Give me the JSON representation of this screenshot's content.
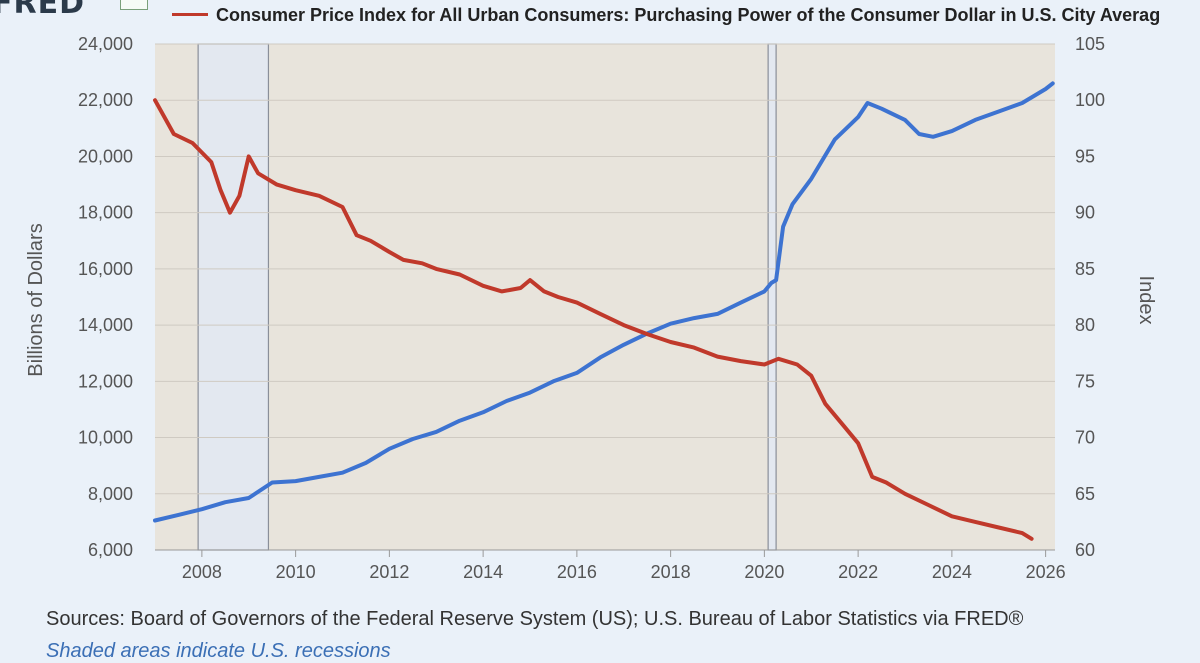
{
  "header": {
    "logo": "FRED",
    "legend": [
      {
        "label": "Consumer Price Index for All Urban Consumers: Purchasing Power of the Consumer Dollar in U.S. City Averag",
        "color": "#c0392b"
      }
    ]
  },
  "footer": {
    "sources": "Sources: Board of Governors of the Federal Reserve System (US); U.S. Bureau of Labor Statistics via FRED®",
    "note": "Shaded areas indicate U.S. recessions"
  },
  "chart_data": {
    "type": "line",
    "xlim": [
      2007.0,
      2026.2
    ],
    "x_ticks": [
      2008,
      2010,
      2012,
      2014,
      2016,
      2018,
      2020,
      2022,
      2024,
      2026
    ],
    "ylabel": "Billions of Dollars",
    "ylim": [
      6000,
      24000
    ],
    "y_ticks": [
      6000,
      8000,
      10000,
      12000,
      14000,
      16000,
      18000,
      20000,
      22000,
      24000
    ],
    "y_tick_labels": [
      "6,000",
      "8,000",
      "10,000",
      "12,000",
      "14,000",
      "16,000",
      "18,000",
      "20,000",
      "22,000",
      "24,000"
    ],
    "y2label": "Index",
    "y2lim": [
      60,
      105
    ],
    "y2_ticks": [
      60,
      65,
      70,
      75,
      80,
      85,
      90,
      95,
      100,
      105
    ],
    "recessions": [
      [
        2007.92,
        2009.42
      ],
      [
        2020.08,
        2020.25
      ]
    ],
    "series": [
      {
        "name": "Billions of Dollars (left axis)",
        "axis": "left",
        "color": "#3d73d1",
        "x": [
          2007.0,
          2007.5,
          2008.0,
          2008.5,
          2009.0,
          2009.5,
          2010.0,
          2010.5,
          2011.0,
          2011.5,
          2012.0,
          2012.5,
          2013.0,
          2013.5,
          2014.0,
          2014.5,
          2015.0,
          2015.5,
          2016.0,
          2016.5,
          2017.0,
          2017.5,
          2018.0,
          2018.5,
          2019.0,
          2019.5,
          2020.0,
          2020.15,
          2020.25,
          2020.4,
          2020.6,
          2021.0,
          2021.5,
          2022.0,
          2022.2,
          2022.5,
          2023.0,
          2023.3,
          2023.6,
          2024.0,
          2024.5,
          2025.0,
          2025.5,
          2026.0,
          2026.15
        ],
        "values": [
          7050,
          7250,
          7450,
          7700,
          7850,
          8400,
          8450,
          8600,
          8750,
          9100,
          9600,
          9950,
          10200,
          10600,
          10900,
          11300,
          11600,
          12000,
          12300,
          12850,
          13300,
          13700,
          14050,
          14250,
          14400,
          14800,
          15200,
          15500,
          15600,
          17500,
          18300,
          19200,
          20600,
          21400,
          21900,
          21700,
          21300,
          20800,
          20700,
          20900,
          21300,
          21600,
          21900,
          22400,
          22600
        ]
      },
      {
        "name": "Consumer Price Index for All Urban Consumers: Purchasing Power of the Consumer Dollar in U.S. City Average (right axis)",
        "axis": "right",
        "color": "#c0392b",
        "x": [
          2007.0,
          2007.4,
          2007.8,
          2008.2,
          2008.4,
          2008.6,
          2008.8,
          2009.0,
          2009.2,
          2009.6,
          2010.0,
          2010.5,
          2011.0,
          2011.3,
          2011.6,
          2012.0,
          2012.3,
          2012.7,
          2013.0,
          2013.5,
          2014.0,
          2014.4,
          2014.8,
          2015.0,
          2015.3,
          2015.6,
          2016.0,
          2016.5,
          2017.0,
          2017.5,
          2018.0,
          2018.5,
          2019.0,
          2019.5,
          2020.0,
          2020.3,
          2020.7,
          2021.0,
          2021.3,
          2021.7,
          2022.0,
          2022.3,
          2022.6,
          2023.0,
          2023.5,
          2024.0,
          2024.5,
          2025.0,
          2025.5,
          2025.7
        ],
        "values": [
          100.0,
          97.0,
          96.2,
          94.5,
          92.0,
          90.0,
          91.5,
          95.0,
          93.5,
          92.5,
          92.0,
          91.5,
          90.5,
          88.0,
          87.5,
          86.5,
          85.8,
          85.5,
          85.0,
          84.5,
          83.5,
          83.0,
          83.3,
          84.0,
          83.0,
          82.5,
          82.0,
          81.0,
          80.0,
          79.2,
          78.5,
          78.0,
          77.2,
          76.8,
          76.5,
          77.0,
          76.5,
          75.5,
          73.0,
          71.0,
          69.5,
          66.5,
          66.0,
          65.0,
          64.0,
          63.0,
          62.5,
          62.0,
          61.5,
          61.0
        ]
      }
    ]
  }
}
